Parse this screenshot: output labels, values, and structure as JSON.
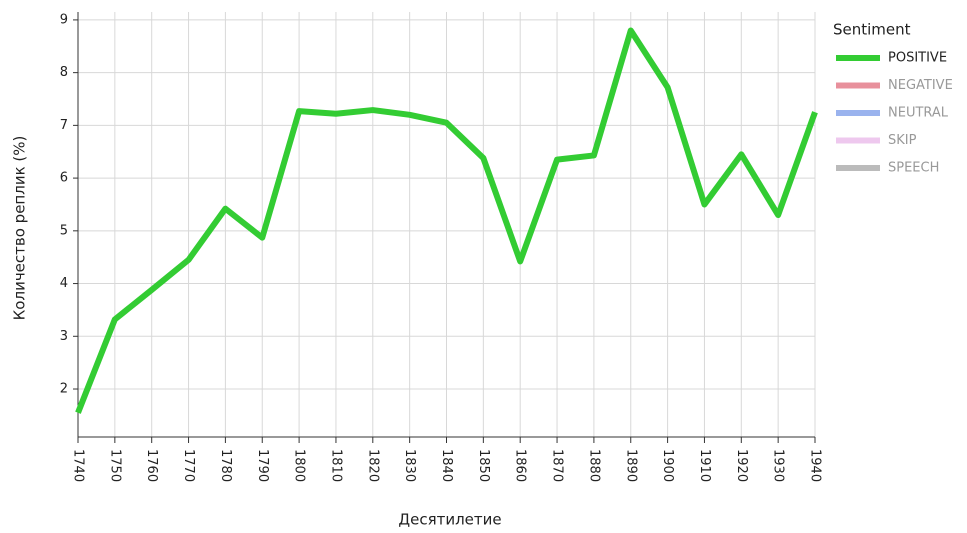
{
  "chart_data": {
    "type": "line",
    "x_label": "Десятилетие",
    "y_label": "Количество реплик (%)",
    "x": [
      1740,
      1750,
      1760,
      1770,
      1780,
      1790,
      1800,
      1810,
      1820,
      1830,
      1840,
      1850,
      1860,
      1870,
      1880,
      1890,
      1900,
      1910,
      1920,
      1930,
      1940
    ],
    "series": [
      {
        "name": "POSITIVE",
        "color": "#33cc33",
        "values": [
          1.55,
          3.32,
          3.88,
          4.45,
          5.42,
          4.87,
          7.27,
          7.22,
          7.29,
          7.2,
          7.05,
          6.38,
          4.42,
          6.35,
          6.43,
          8.8,
          7.72,
          5.5,
          6.45,
          5.3,
          7.25
        ]
      }
    ],
    "legend_title": "Sentiment",
    "legend_inactive": [
      {
        "name": "NEGATIVE",
        "color": "#e8909c"
      },
      {
        "name": "NEUTRAL",
        "color": "#9ab3ee"
      },
      {
        "name": "SKIP",
        "color": "#eec8ee"
      },
      {
        "name": "SPEECH",
        "color": "#bbbbbb"
      }
    ],
    "xlim": [
      1740,
      1940
    ],
    "xticks": [
      1740,
      1750,
      1760,
      1770,
      1780,
      1790,
      1800,
      1810,
      1820,
      1830,
      1840,
      1850,
      1860,
      1870,
      1880,
      1890,
      1900,
      1910,
      1920,
      1930,
      1940
    ],
    "ylim": [
      1.09,
      9.15
    ],
    "yticks": [
      2,
      3,
      4,
      5,
      6,
      7,
      8,
      9
    ],
    "grid": true
  }
}
